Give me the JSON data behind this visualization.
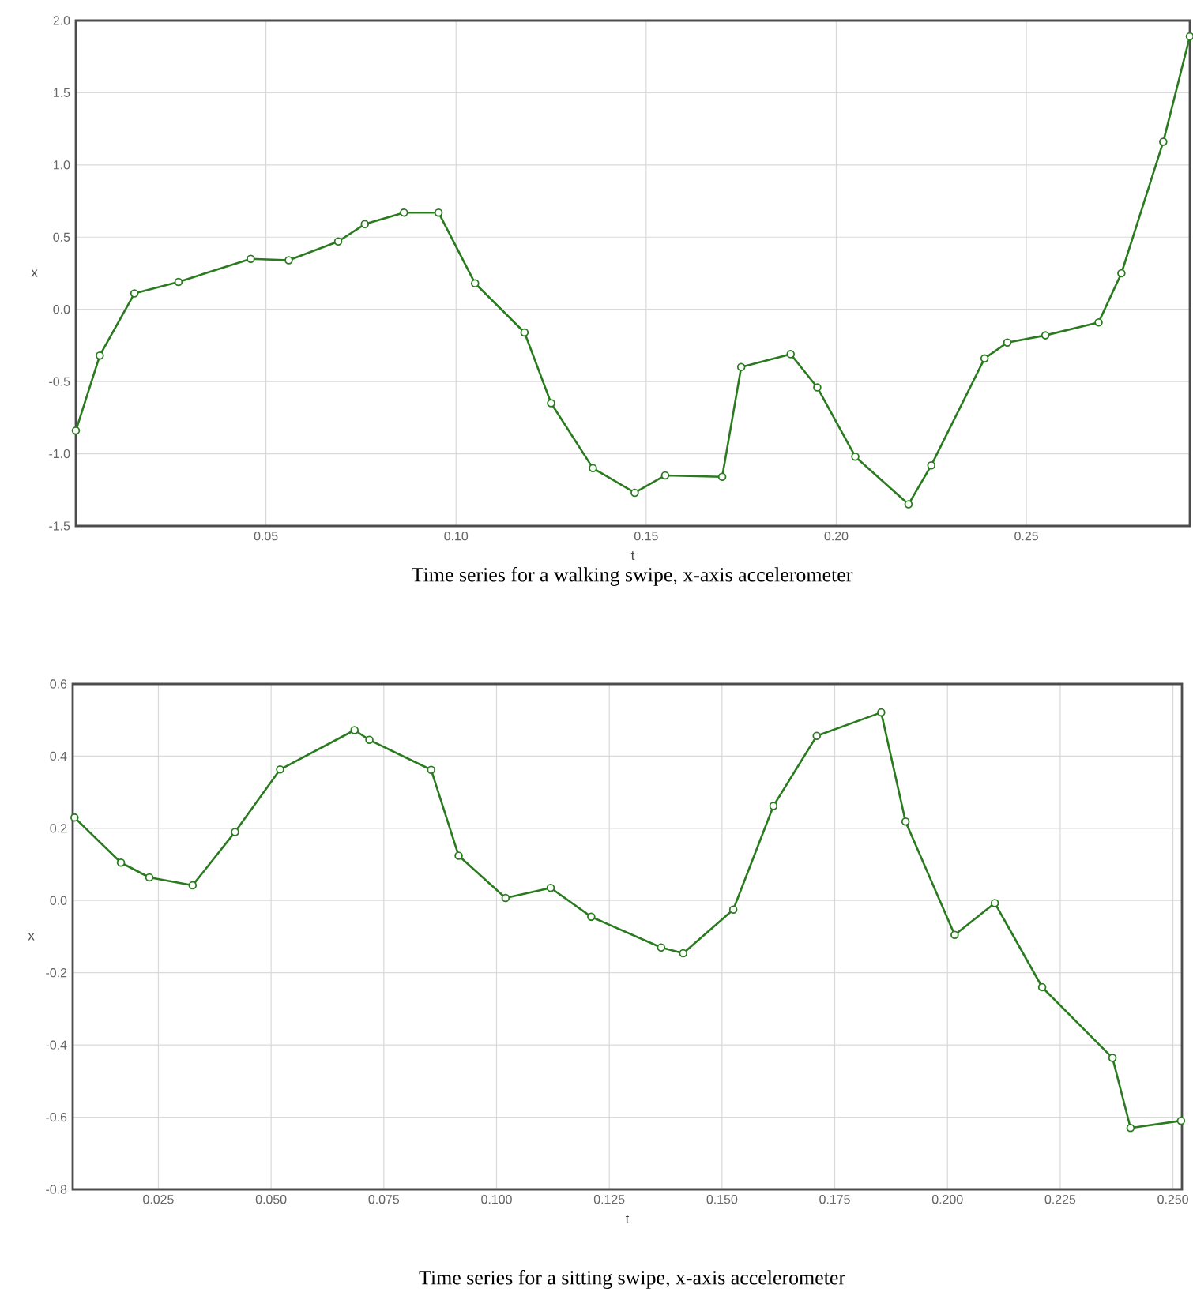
{
  "chart_data": [
    {
      "type": "line",
      "title": "Time series for a walking swipe, x-axis accelerometer",
      "xlabel": "t",
      "ylabel": "x",
      "x": [
        0.0,
        0.0063,
        0.0154,
        0.027,
        0.046,
        0.056,
        0.069,
        0.076,
        0.0863,
        0.0954,
        0.105,
        0.118,
        0.125,
        0.136,
        0.147,
        0.155,
        0.17,
        0.175,
        0.188,
        0.195,
        0.205,
        0.219,
        0.225,
        0.239,
        0.245,
        0.255,
        0.269,
        0.275,
        0.286,
        0.293
      ],
      "series": [
        {
          "color": "#2a7a1f",
          "values": [
            -0.84,
            -0.32,
            0.11,
            0.19,
            0.35,
            0.34,
            0.47,
            0.59,
            0.67,
            0.67,
            0.18,
            -0.16,
            -0.65,
            -1.1,
            -1.27,
            -1.15,
            -1.16,
            -0.4,
            -0.31,
            -0.54,
            -1.02,
            -1.35,
            -1.08,
            -0.34,
            -0.23,
            -0.18,
            -0.09,
            0.25,
            1.16,
            1.89
          ]
        }
      ],
      "xlim": [
        0.0,
        0.293
      ],
      "ylim": [
        -1.5,
        2.0
      ],
      "xticks": [
        0.05,
        {
          "value": 0.1,
          "label": "0.10"
        },
        0.15,
        {
          "value": 0.2,
          "label": "0.20"
        },
        0.25
      ],
      "yticks": [
        {
          "value": -1.5,
          "label": "-1.5"
        },
        {
          "value": -1.0,
          "label": "-1.0"
        },
        {
          "value": -0.5,
          "label": "-0.5"
        },
        {
          "value": 0.0,
          "label": "0.0"
        },
        {
          "value": 0.5,
          "label": "0.5"
        },
        {
          "value": 1.0,
          "label": "1.0"
        },
        {
          "value": 1.5,
          "label": "1.5"
        },
        {
          "value": 2.0,
          "label": "2.0"
        }
      ],
      "grid": true,
      "marker": "circle",
      "line_style": "solid"
    },
    {
      "type": "line",
      "title": "Time series for a sitting swipe, x-axis accelerometer",
      "xlabel": "t",
      "ylabel": "x",
      "x": [
        0.0064,
        0.0167,
        0.023,
        0.0326,
        0.042,
        0.052,
        0.0685,
        0.0718,
        0.0855,
        0.0916,
        0.102,
        0.112,
        0.121,
        0.1365,
        0.1414,
        0.1525,
        0.1614,
        0.171,
        0.1853,
        0.1907,
        0.2016,
        0.2105,
        0.221,
        0.2366,
        0.2406,
        0.2518
      ],
      "series": [
        {
          "color": "#2a7a1f",
          "values": [
            0.23,
            0.105,
            0.064,
            0.042,
            0.19,
            0.363,
            0.472,
            0.445,
            0.362,
            0.124,
            0.007,
            0.035,
            -0.045,
            -0.13,
            -0.146,
            -0.025,
            0.262,
            0.456,
            0.521,
            0.219,
            -0.095,
            -0.007,
            -0.24,
            -0.436,
            -0.63,
            -0.61
          ]
        }
      ],
      "xlim": [
        0.006,
        0.252
      ],
      "ylim": [
        -0.8,
        0.6
      ],
      "xticks": [
        0.025,
        {
          "value": 0.05,
          "label": "0.050"
        },
        0.075,
        {
          "value": 0.1,
          "label": "0.100"
        },
        0.125,
        {
          "value": 0.15,
          "label": "0.150"
        },
        0.175,
        {
          "value": 0.2,
          "label": "0.200"
        },
        0.225,
        {
          "value": 0.25,
          "label": "0.250"
        }
      ],
      "yticks": [
        {
          "value": -0.8,
          "label": "-0.8"
        },
        {
          "value": -0.6,
          "label": "-0.6"
        },
        {
          "value": -0.4,
          "label": "-0.4"
        },
        {
          "value": -0.2,
          "label": "-0.2"
        },
        {
          "value": 0.0,
          "label": "0.0"
        },
        {
          "value": 0.2,
          "label": "0.2"
        },
        {
          "value": 0.4,
          "label": "0.4"
        },
        {
          "value": 0.6,
          "label": "0.6"
        }
      ],
      "grid": true,
      "marker": "circle",
      "line_style": "solid"
    }
  ]
}
